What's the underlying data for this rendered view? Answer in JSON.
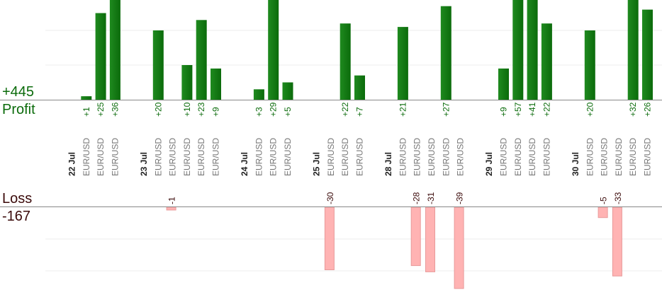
{
  "summary": {
    "profit_total": "+445",
    "profit_label": "Profit",
    "loss_label": "Loss",
    "loss_total": "-167"
  },
  "colors": {
    "profit_bar": "#0b6b0b",
    "profit_text": "#0b6b0b",
    "loss_bar_fill": "#ffb3b3",
    "loss_bar_stroke": "#e89a9a",
    "gridline": "#ececec",
    "baseline": "#888888"
  },
  "chart_data": {
    "type": "bar",
    "grid": true,
    "categories": [
      {
        "kind": "date",
        "label": "22 Jul"
      },
      {
        "kind": "pair",
        "label": "EUR/USD",
        "value": 1
      },
      {
        "kind": "pair",
        "label": "EUR/USD",
        "value": 25
      },
      {
        "kind": "pair",
        "label": "EUR/USD",
        "value": 36
      },
      {
        "kind": "gap"
      },
      {
        "kind": "date",
        "label": "23 Jul"
      },
      {
        "kind": "pair",
        "label": "EUR/USD",
        "value": 20
      },
      {
        "kind": "pair",
        "label": "EUR/USD",
        "value": -1
      },
      {
        "kind": "pair",
        "label": "EUR/USD",
        "value": 10
      },
      {
        "kind": "pair",
        "label": "EUR/USD",
        "value": 23
      },
      {
        "kind": "pair",
        "label": "EUR/USD",
        "value": 9
      },
      {
        "kind": "gap"
      },
      {
        "kind": "date",
        "label": "24 Jul"
      },
      {
        "kind": "pair",
        "label": "EUR/USD",
        "value": 3
      },
      {
        "kind": "pair",
        "label": "EUR/USD",
        "value": 29
      },
      {
        "kind": "pair",
        "label": "EUR/USD",
        "value": 5
      },
      {
        "kind": "gap"
      },
      {
        "kind": "date",
        "label": "25 Jul"
      },
      {
        "kind": "pair",
        "label": "EUR/USD",
        "value": -30
      },
      {
        "kind": "pair",
        "label": "EUR/USD",
        "value": 22
      },
      {
        "kind": "pair",
        "label": "EUR/USD",
        "value": 7
      },
      {
        "kind": "gap"
      },
      {
        "kind": "date",
        "label": "28 Jul"
      },
      {
        "kind": "pair",
        "label": "EUR/USD",
        "value": 21
      },
      {
        "kind": "pair",
        "label": "EUR/USD",
        "value": -28
      },
      {
        "kind": "pair",
        "label": "EUR/USD",
        "value": -31
      },
      {
        "kind": "pair",
        "label": "EUR/USD",
        "value": 27
      },
      {
        "kind": "pair",
        "label": "EUR/USD",
        "value": -39
      },
      {
        "kind": "gap"
      },
      {
        "kind": "date",
        "label": "29 Jul"
      },
      {
        "kind": "pair",
        "label": "EUR/USD",
        "value": 9
      },
      {
        "kind": "pair",
        "label": "EUR/USD",
        "value": 57
      },
      {
        "kind": "pair",
        "label": "EUR/USD",
        "value": 41
      },
      {
        "kind": "pair",
        "label": "EUR/USD",
        "value": 22
      },
      {
        "kind": "gap"
      },
      {
        "kind": "date",
        "label": "30 Jul"
      },
      {
        "kind": "pair",
        "label": "EUR/USD",
        "value": 20
      },
      {
        "kind": "pair",
        "label": "EUR/USD",
        "value": -5
      },
      {
        "kind": "pair",
        "label": "EUR/USD",
        "value": -33
      },
      {
        "kind": "pair",
        "label": "EUR/USD",
        "value": 32
      },
      {
        "kind": "pair",
        "label": "EUR/USD",
        "value": 26
      }
    ],
    "profit_ylim": [
      0,
      30
    ],
    "loss_ylim": [
      -39,
      0
    ]
  }
}
